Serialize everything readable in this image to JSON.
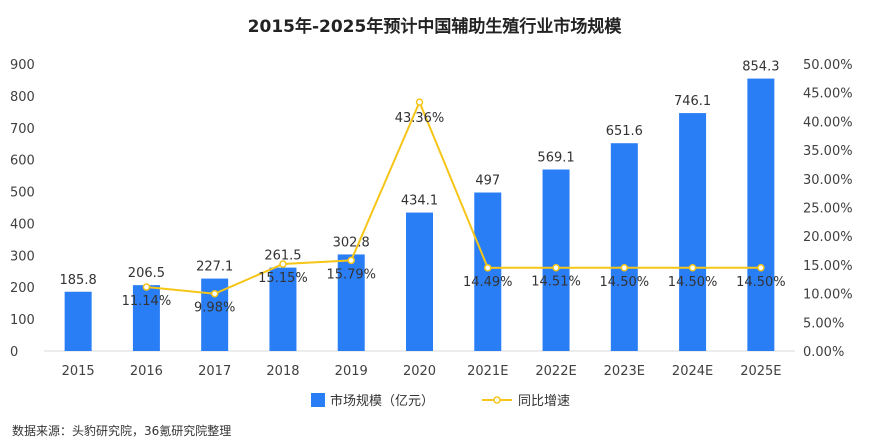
{
  "chart_data": {
    "type": "bar",
    "title": "2015年-2025年预计中国辅助生殖行业市场规模",
    "categories": [
      "2015",
      "2016",
      "2017",
      "2018",
      "2019",
      "2020",
      "2021E",
      "2022E",
      "2023E",
      "2024E",
      "2025E"
    ],
    "series": [
      {
        "name": "市场规模（亿元）",
        "type": "bar",
        "axis": "left",
        "color": "#2a7ef5",
        "values": [
          185.8,
          206.5,
          227.1,
          261.5,
          302.8,
          434.1,
          497,
          569.1,
          651.6,
          746.1,
          854.3
        ],
        "labels": [
          "185.8",
          "206.5",
          "227.1",
          "261.5",
          "302.8",
          "434.1",
          "497",
          "569.1",
          "651.6",
          "746.1",
          "854.3"
        ]
      },
      {
        "name": "同比增速",
        "type": "line",
        "axis": "right",
        "color": "#f5c518",
        "x": [
          "2016",
          "2017",
          "2018",
          "2019",
          "2020",
          "2021E",
          "2022E",
          "2023E",
          "2024E",
          "2025E"
        ],
        "values": [
          11.14,
          9.98,
          15.15,
          15.79,
          43.36,
          14.49,
          14.51,
          14.5,
          14.5,
          14.5
        ],
        "labels": [
          "11.14%",
          "9.98%",
          "15.15%",
          "15.79%",
          "43.36%",
          "14.49%",
          "14.51%",
          "14.50%",
          "14.50%",
          "14.50%"
        ]
      }
    ],
    "y_left": {
      "min": 0,
      "max": 900,
      "ticks": [
        "0",
        "100",
        "200",
        "300",
        "400",
        "500",
        "600",
        "700",
        "800",
        "900"
      ]
    },
    "y_right": {
      "min": 0,
      "max": 50,
      "ticks": [
        "0.00%",
        "5.00%",
        "10.00%",
        "15.00%",
        "20.00%",
        "25.00%",
        "30.00%",
        "35.00%",
        "40.00%",
        "45.00%",
        "50.00%"
      ]
    },
    "grid": false,
    "legend_position": "bottom-center",
    "source": "数据来源：头豹研究院，36氪研究院整理"
  }
}
